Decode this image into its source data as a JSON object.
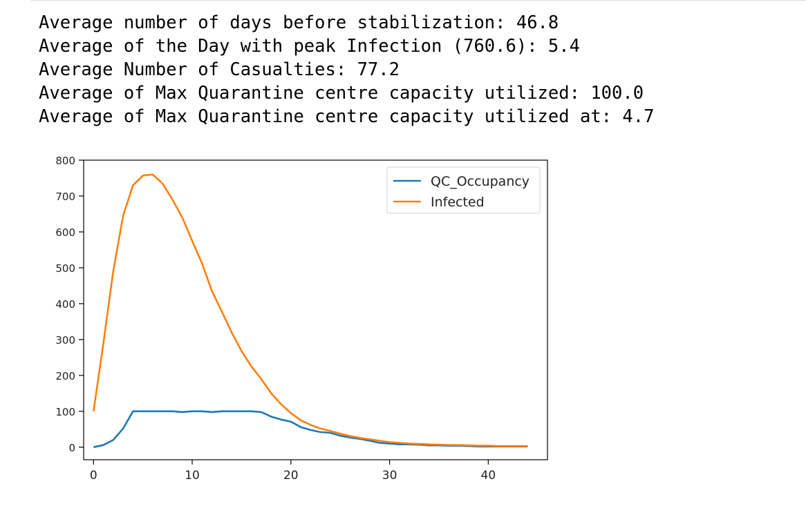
{
  "output": {
    "lines": [
      "Average number of days before stabilization: 46.8",
      "Average of the Day with peak Infection (760.6): 5.4",
      "Average Number of Casualties: 77.2",
      "Average of Max Quarantine centre capacity utilized: 100.0",
      "Average of Max Quarantine centre capacity utilized at: 4.7"
    ]
  },
  "chart_data": {
    "type": "line",
    "title": "",
    "xlabel": "",
    "ylabel": "",
    "xlim": [
      -1,
      46
    ],
    "ylim": [
      -35,
      800
    ],
    "x_ticks": [
      0,
      10,
      20,
      30,
      40
    ],
    "y_ticks": [
      0,
      100,
      200,
      300,
      400,
      500,
      600,
      700,
      800
    ],
    "x_tick_labels": [
      "0",
      "10",
      "20",
      "30",
      "40"
    ],
    "y_tick_labels": [
      "0",
      "100",
      "200",
      "300",
      "400",
      "500",
      "600",
      "700",
      "800"
    ],
    "grid": false,
    "legend_position": "upper right",
    "x": [
      0,
      1,
      2,
      3,
      4,
      5,
      6,
      7,
      8,
      9,
      10,
      11,
      12,
      13,
      14,
      15,
      16,
      17,
      18,
      19,
      20,
      21,
      22,
      23,
      24,
      25,
      26,
      27,
      28,
      29,
      30,
      31,
      32,
      33,
      34,
      35,
      36,
      37,
      38,
      39,
      40,
      41,
      42,
      43,
      44
    ],
    "series": [
      {
        "name": "QC_Occupancy",
        "color": "#1f77b4",
        "values": [
          0,
          6,
          20,
          52,
          100,
          100,
          100,
          100,
          100,
          98,
          100,
          100,
          98,
          100,
          100,
          100,
          100,
          98,
          85,
          77,
          71,
          56,
          48,
          42,
          40,
          32,
          27,
          23,
          18,
          12,
          10,
          8,
          8,
          7,
          5,
          5,
          4,
          4,
          3,
          2,
          2,
          2,
          2,
          2,
          2
        ]
      },
      {
        "name": "Infected",
        "color": "#ff7f0e",
        "values": [
          100,
          290,
          490,
          645,
          730,
          757,
          760,
          735,
          690,
          640,
          575,
          512,
          435,
          378,
          320,
          268,
          225,
          190,
          150,
          120,
          95,
          75,
          62,
          52,
          45,
          38,
          31,
          26,
          22,
          18,
          14,
          12,
          10,
          9,
          8,
          7,
          6,
          6,
          5,
          4,
          4,
          3,
          3,
          3,
          3
        ]
      }
    ]
  }
}
